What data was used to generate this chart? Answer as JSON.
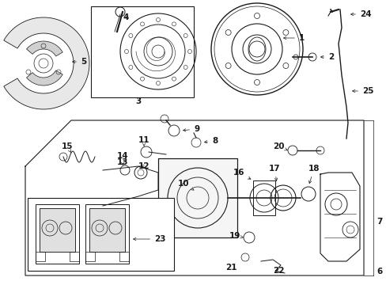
{
  "fig_width": 4.89,
  "fig_height": 3.6,
  "dpi": 100,
  "bg": "#ffffff",
  "lc": "#1a1a1a",
  "gray": "#888888",
  "lightgray": "#cccccc"
}
